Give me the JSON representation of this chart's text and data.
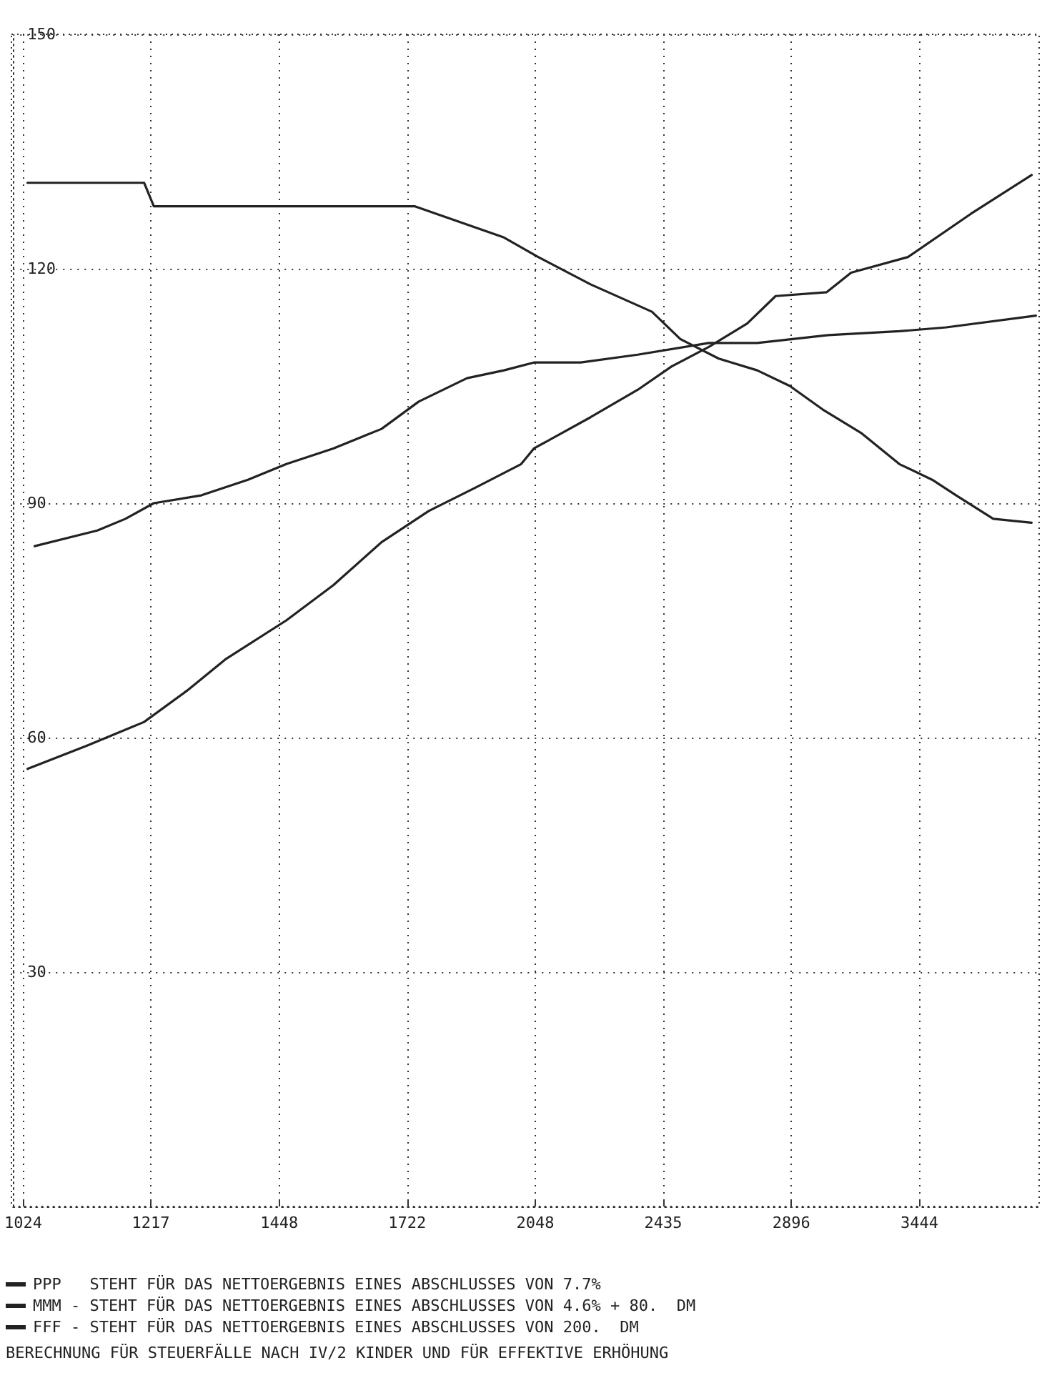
{
  "chart_data": {
    "type": "line",
    "log": "x",
    "xlim": [
      1010,
      4050
    ],
    "ylim": [
      0,
      150
    ],
    "xticks": [
      1024,
      1217,
      1448,
      1722,
      2048,
      2435,
      2896,
      3444
    ],
    "yticks": [
      30,
      60,
      90,
      120,
      150
    ],
    "grid": true,
    "legend": "bottom",
    "marker": "none",
    "line_style": "solid",
    "series": [
      {
        "name": "PPP   STEHT FÜR DAS NETTOERGEBNIS EINES ABSCHLUSSES VON 7.7%",
        "color": "#222222",
        "x": [
          1030,
          1117,
          1206,
          1278,
          1346,
          1462,
          1558,
          1663,
          1773,
          1889,
          2009,
          2044,
          2207,
          2352,
          2463,
          2590,
          2728,
          2835,
          3038,
          3140,
          3391,
          3691,
          4009
        ],
        "values": [
          56,
          59,
          62,
          66,
          70,
          75,
          79.5,
          85,
          89,
          92,
          95,
          97,
          101,
          104.5,
          107.5,
          110,
          113,
          116.5,
          117,
          119.5,
          121.5,
          127,
          132
        ]
      },
      {
        "name": "MMM - STEHT FÜR DAS NETTOERGEBNIS EINES ABSCHLUSSES VON 4.6% + 80.  DM",
        "color": "#222222",
        "x": [
          1040,
          1132,
          1176,
          1222,
          1303,
          1388,
          1462,
          1558,
          1663,
          1749,
          1867,
          1963,
          2044,
          2178,
          2352,
          2590,
          2765,
          3044,
          3352,
          3572,
          4032
        ],
        "values": [
          84.5,
          86.5,
          88,
          90,
          91,
          93,
          95,
          97,
          99.5,
          103,
          106,
          107,
          108,
          108,
          109,
          110.5,
          110.5,
          111.5,
          112,
          112.5,
          114
        ]
      },
      {
        "name": "FFF - STEHT FÜR DAS NETTOERGEBNIS EINES ABSCHLUSSES VON 200.  DM",
        "color": "#222222",
        "x": [
          1030,
          1206,
          1222,
          1739,
          1963,
          2056,
          2207,
          2398,
          2492,
          2625,
          2765,
          2890,
          3021,
          3182,
          3352,
          3504,
          3620,
          3806,
          4009
        ],
        "values": [
          131,
          131,
          128,
          128,
          124,
          121.5,
          118,
          114.5,
          111,
          108.5,
          107,
          105,
          102,
          99,
          95,
          93,
          91,
          88,
          87.5
        ]
      }
    ],
    "annotations": [
      "BERECHNUNG FÜR STEUERFÄLLE NACH IV/2 KINDER UND FÜR EFFEKTIVE ERHÖHUNG"
    ]
  }
}
